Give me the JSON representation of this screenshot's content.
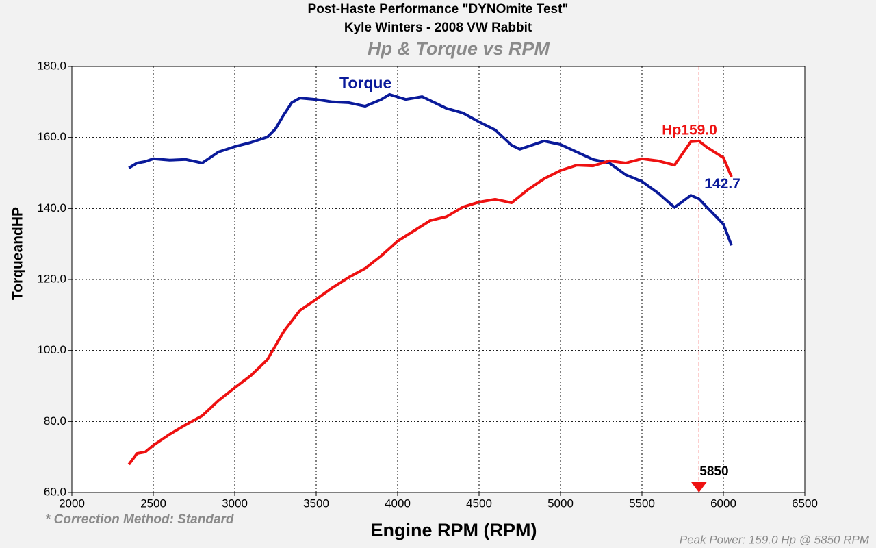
{
  "chart_data": {
    "type": "line",
    "title": "Post-Haste Performance \"DYNOmite Test\"",
    "subtitle": "Kyle Winters - 2008 VW Rabbit",
    "chart_title": "Hp & Torque vs RPM",
    "x_label": "Engine RPM (RPM)",
    "y_label": "TorqueandHP",
    "note": "* Correction Method: Standard",
    "footer": "Peak Power: 159.0 Hp @ 5850 RPM",
    "marker_x": 5850,
    "grid": true,
    "xlim": [
      2000,
      6500
    ],
    "xticks": [
      2000,
      2500,
      3000,
      3500,
      4000,
      4500,
      5000,
      5500,
      6000,
      6500
    ],
    "ylim": [
      60,
      180
    ],
    "yticks": [
      {
        "value": 60,
        "label": "60.0"
      },
      {
        "value": 80,
        "label": "80.0"
      },
      {
        "value": 100,
        "label": "100.0"
      },
      {
        "value": 120,
        "label": "120.0"
      },
      {
        "value": 140,
        "label": "140.0"
      },
      {
        "value": 160,
        "label": "160.0"
      },
      {
        "value": 180,
        "label": "180.0"
      }
    ],
    "series": [
      {
        "name": "Torque",
        "color": "#0a1a9a",
        "x": [
          2350,
          2400,
          2450,
          2500,
          2600,
          2700,
          2800,
          2900,
          3000,
          3100,
          3200,
          3250,
          3300,
          3350,
          3400,
          3500,
          3600,
          3700,
          3800,
          3900,
          3950,
          4050,
          4150,
          4300,
          4400,
          4500,
          4600,
          4700,
          4750,
          4900,
          5000,
          5100,
          5200,
          5300,
          5400,
          5500,
          5600,
          5700,
          5800,
          5850,
          5900,
          6000,
          6050
        ],
        "values": [
          151.4,
          152.8,
          153.2,
          154,
          153.6,
          153.8,
          152.8,
          155.9,
          157.4,
          158.6,
          160.1,
          162.4,
          166.3,
          169.8,
          171.1,
          170.7,
          170,
          169.8,
          168.8,
          170.7,
          172.1,
          170.7,
          171.5,
          168.2,
          166.9,
          164.4,
          162.1,
          157.8,
          156.7,
          159,
          158,
          155.9,
          153.8,
          152.8,
          149.5,
          147.6,
          144.3,
          140.3,
          143.7,
          142.7,
          140.3,
          135.6,
          129.6
        ],
        "value_labels": [
          null,
          null,
          null,
          null,
          null,
          null,
          null,
          null,
          null,
          null,
          null,
          null,
          null,
          null,
          null,
          null,
          null,
          null,
          null,
          null,
          null,
          null,
          null,
          null,
          null,
          null,
          null,
          null,
          null,
          null,
          null,
          null,
          null,
          null,
          null,
          null,
          null,
          null,
          null,
          "142.7",
          null,
          null,
          null
        ]
      },
      {
        "name": "Hp",
        "color": "#ee1111",
        "x": [
          2350,
          2400,
          2450,
          2500,
          2600,
          2700,
          2800,
          2900,
          3000,
          3100,
          3200,
          3300,
          3400,
          3500,
          3600,
          3700,
          3800,
          3900,
          4000,
          4100,
          4200,
          4300,
          4400,
          4500,
          4600,
          4700,
          4800,
          4900,
          5000,
          5100,
          5200,
          5300,
          5400,
          5500,
          5600,
          5700,
          5800,
          5850,
          5900,
          6000,
          6050
        ],
        "values": [
          67.9,
          71,
          71.4,
          73.3,
          76.4,
          79.1,
          81.6,
          85.9,
          89.5,
          93,
          97.4,
          105.3,
          111.3,
          114.4,
          117.7,
          120.6,
          123.1,
          126.7,
          130.8,
          133.7,
          136.6,
          137.7,
          140.4,
          141.8,
          142.6,
          141.6,
          145.3,
          148.4,
          150.7,
          152.2,
          152,
          153.4,
          152.8,
          154,
          153.4,
          152.2,
          158.8,
          159.0,
          157.2,
          154.3,
          148.9
        ],
        "value_labels": [
          null,
          null,
          null,
          null,
          null,
          null,
          null,
          null,
          null,
          null,
          null,
          null,
          null,
          null,
          null,
          null,
          null,
          null,
          null,
          null,
          null,
          null,
          null,
          null,
          null,
          null,
          null,
          null,
          null,
          null,
          null,
          null,
          null,
          null,
          null,
          null,
          null,
          "159.0",
          null,
          null,
          null
        ]
      }
    ]
  }
}
